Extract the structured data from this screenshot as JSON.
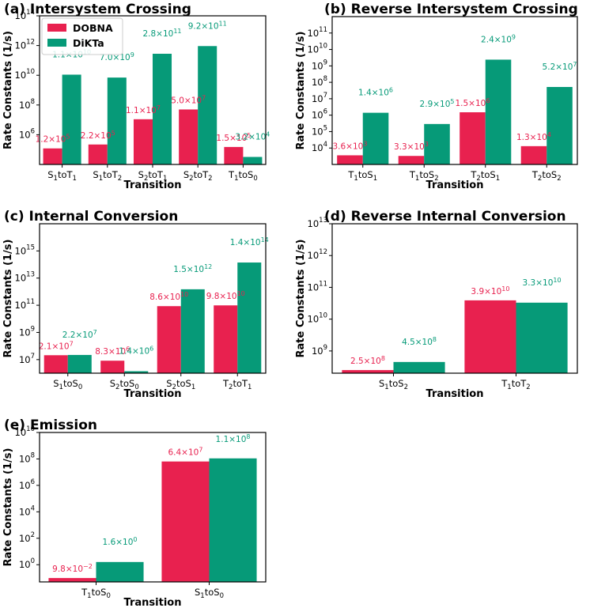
{
  "colors": {
    "DOBNA": "#e8214f",
    "DiKTa": "#069a78"
  },
  "legend": {
    "items": [
      "DOBNA",
      "DiKTa"
    ]
  },
  "chart_data": [
    {
      "id": "a",
      "type": "bar",
      "title": "(a) Intersystem Crossing",
      "xlabel": "Transition",
      "ylabel": "Rate Constants (1/s)",
      "yscale": "log",
      "ylim": [
        10000,
        100000000000000.0
      ],
      "grid": false,
      "categories": [
        {
          "main": "S",
          "sub1": "1",
          "mid": "toT",
          "sub2": "1"
        },
        {
          "main": "S",
          "sub1": "1",
          "mid": "toT",
          "sub2": "2"
        },
        {
          "main": "S",
          "sub1": "2",
          "mid": "toT",
          "sub2": "1"
        },
        {
          "main": "S",
          "sub1": "2",
          "mid": "toT",
          "sub2": "2"
        },
        {
          "main": "T",
          "sub1": "1",
          "mid": "toS",
          "sub2": "0"
        }
      ],
      "yticks": [
        {
          "base": "10",
          "exp": "6"
        },
        {
          "base": "10",
          "exp": "8"
        },
        {
          "base": "10",
          "exp": "10"
        },
        {
          "base": "10",
          "exp": "12"
        },
        {
          "base": "10",
          "exp": "14"
        }
      ],
      "series": [
        {
          "name": "DOBNA",
          "values": [
            120000.0,
            220000.0,
            11000000.0,
            50000000.0,
            150000.0
          ],
          "labels": [
            {
              "m": "1.2×10",
              "e": "5"
            },
            {
              "m": "2.2×10",
              "e": "5"
            },
            {
              "m": "1.1×10",
              "e": "7"
            },
            {
              "m": "5.0×10",
              "e": "7"
            },
            {
              "m": "1.5×10",
              "e": "5"
            }
          ]
        },
        {
          "name": "DiKTa",
          "values": [
            11000000000.0,
            7000000000.0,
            280000000000.0,
            920000000000.0,
            32000.0
          ],
          "labels": [
            {
              "m": "1.1×10",
              "e": "10"
            },
            {
              "m": "7.0×10",
              "e": "9"
            },
            {
              "m": "2.8×10",
              "e": "11"
            },
            {
              "m": "9.2×10",
              "e": "11"
            },
            {
              "m": "3.2×10",
              "e": "4"
            }
          ]
        }
      ]
    },
    {
      "id": "b",
      "type": "bar",
      "title": "(b) Reverse Intersystem Crossing",
      "xlabel": "Transition",
      "ylabel": "Rate Constants (1/s)",
      "yscale": "log",
      "ylim": [
        1000,
        1000000000000.0
      ],
      "grid": false,
      "categories": [
        {
          "main": "T",
          "sub1": "1",
          "mid": "toS",
          "sub2": "1"
        },
        {
          "main": "T",
          "sub1": "1",
          "mid": "toS",
          "sub2": "2"
        },
        {
          "main": "T",
          "sub1": "2",
          "mid": "toS",
          "sub2": "1"
        },
        {
          "main": "T",
          "sub1": "2",
          "mid": "toS",
          "sub2": "2"
        }
      ],
      "yticks": [
        {
          "base": "10",
          "exp": "4"
        },
        {
          "base": "10",
          "exp": "5"
        },
        {
          "base": "10",
          "exp": "6"
        },
        {
          "base": "10",
          "exp": "7"
        },
        {
          "base": "10",
          "exp": "8"
        },
        {
          "base": "10",
          "exp": "9"
        },
        {
          "base": "10",
          "exp": "10"
        },
        {
          "base": "10",
          "exp": "11"
        }
      ],
      "series": [
        {
          "name": "DOBNA",
          "values": [
            3600.0,
            3300.0,
            1500000.0,
            13000.0
          ],
          "labels": [
            {
              "m": "3.6×10",
              "e": "3"
            },
            {
              "m": "3.3×10",
              "e": "3"
            },
            {
              "m": "1.5×10",
              "e": "6"
            },
            {
              "m": "1.3×10",
              "e": "4"
            }
          ]
        },
        {
          "name": "DiKTa",
          "values": [
            1400000.0,
            290000.0,
            2400000000.0,
            52000000.0
          ],
          "labels": [
            {
              "m": "1.4×10",
              "e": "6"
            },
            {
              "m": "2.9×10",
              "e": "5"
            },
            {
              "m": "2.4×10",
              "e": "9"
            },
            {
              "m": "5.2×10",
              "e": "7"
            }
          ]
        }
      ]
    },
    {
      "id": "c",
      "type": "bar",
      "title": "(c) Internal Conversion",
      "xlabel": "Transition",
      "ylabel": "Rate Constants (1/s)",
      "yscale": "log",
      "ylim": [
        1000000,
        1e+17
      ],
      "grid": false,
      "categories": [
        {
          "main": "S",
          "sub1": "1",
          "mid": "toS",
          "sub2": "0"
        },
        {
          "main": "S",
          "sub1": "2",
          "mid": "toS",
          "sub2": "0"
        },
        {
          "main": "S",
          "sub1": "2",
          "mid": "toS",
          "sub2": "1"
        },
        {
          "main": "T",
          "sub1": "2",
          "mid": "toT",
          "sub2": "1"
        }
      ],
      "yticks": [
        {
          "base": "10",
          "exp": "7"
        },
        {
          "base": "10",
          "exp": "9"
        },
        {
          "base": "10",
          "exp": "11"
        },
        {
          "base": "10",
          "exp": "13"
        },
        {
          "base": "10",
          "exp": "15"
        }
      ],
      "series": [
        {
          "name": "DOBNA",
          "values": [
            21000000.0,
            8300000.0,
            86000000000.0,
            98000000000.0
          ],
          "labels": [
            {
              "m": "2.1×10",
              "e": "7"
            },
            {
              "m": "8.3×10",
              "e": "6"
            },
            {
              "m": "8.6×10",
              "e": "10"
            },
            {
              "m": "9.8×10",
              "e": "10"
            }
          ]
        },
        {
          "name": "DiKTa",
          "values": [
            22000000.0,
            1400000.0,
            1500000000000.0,
            140000000000000.0
          ],
          "labels": [
            {
              "m": "2.2×10",
              "e": "7"
            },
            {
              "m": "1.4×10",
              "e": "6"
            },
            {
              "m": "1.5×10",
              "e": "12"
            },
            {
              "m": "1.4×10",
              "e": "14"
            }
          ]
        }
      ]
    },
    {
      "id": "d",
      "type": "bar",
      "title": "(d) Reverse Internal Conversion",
      "xlabel": "Transition",
      "ylabel": "Rate Constants (1/s)",
      "yscale": "log",
      "ylim": [
        200000000,
        10000000000000.0
      ],
      "grid": false,
      "categories": [
        {
          "main": "S",
          "sub1": "1",
          "mid": "toS",
          "sub2": "2"
        },
        {
          "main": "T",
          "sub1": "1",
          "mid": "toT",
          "sub2": "2"
        }
      ],
      "yticks": [
        {
          "base": "10",
          "exp": "9"
        },
        {
          "base": "10",
          "exp": "10"
        },
        {
          "base": "10",
          "exp": "11"
        },
        {
          "base": "10",
          "exp": "12"
        },
        {
          "base": "10",
          "exp": "13"
        }
      ],
      "series": [
        {
          "name": "DOBNA",
          "values": [
            250000000.0,
            39000000000.0
          ],
          "labels": [
            {
              "m": "2.5×10",
              "e": "8"
            },
            {
              "m": "3.9×10",
              "e": "10"
            }
          ]
        },
        {
          "name": "DiKTa",
          "values": [
            450000000.0,
            33000000000.0
          ],
          "labels": [
            {
              "m": "4.5×10",
              "e": "8"
            },
            {
              "m": "3.3×10",
              "e": "10"
            }
          ]
        }
      ]
    },
    {
      "id": "e",
      "type": "bar",
      "title": "(e) Emission",
      "xlabel": "Transition",
      "ylabel": "Rate Constants (1/s)",
      "yscale": "log",
      "ylim": [
        0.05,
        10000000000.0
      ],
      "grid": false,
      "categories": [
        {
          "main": "T",
          "sub1": "1",
          "mid": "toS",
          "sub2": "0"
        },
        {
          "main": "S",
          "sub1": "1",
          "mid": "toS",
          "sub2": "0"
        }
      ],
      "yticks": [
        {
          "base": "10",
          "exp": "0"
        },
        {
          "base": "10",
          "exp": "2"
        },
        {
          "base": "10",
          "exp": "4"
        },
        {
          "base": "10",
          "exp": "6"
        },
        {
          "base": "10",
          "exp": "8"
        },
        {
          "base": "10",
          "exp": "10"
        }
      ],
      "series": [
        {
          "name": "DOBNA",
          "values": [
            0.098,
            64000000.0
          ],
          "labels": [
            {
              "m": "9.8×10",
              "e": "−2"
            },
            {
              "m": "6.4×10",
              "e": "7"
            }
          ]
        },
        {
          "name": "DiKTa",
          "values": [
            1.6,
            110000000.0
          ],
          "labels": [
            {
              "m": "1.6×10",
              "e": "0"
            },
            {
              "m": "1.1×10",
              "e": "8"
            }
          ]
        }
      ]
    }
  ]
}
